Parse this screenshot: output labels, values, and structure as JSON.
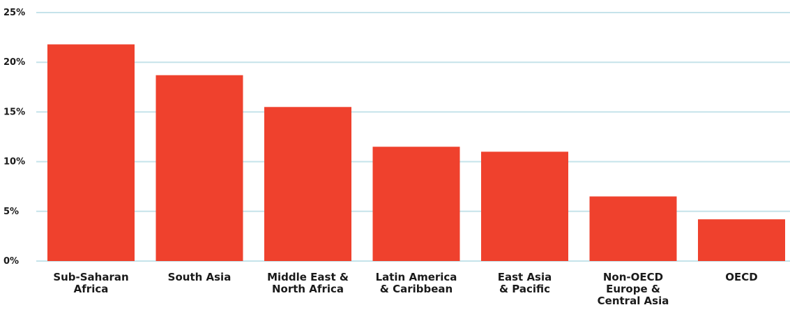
{
  "chart_data": {
    "type": "bar",
    "title": "",
    "xlabel": "",
    "ylabel": "",
    "categories": [
      [
        "Sub-Saharan",
        "Africa"
      ],
      [
        "South Asia"
      ],
      [
        "Middle East &",
        "North Africa"
      ],
      [
        "Latin America",
        "& Caribbean"
      ],
      [
        "East Asia",
        "& Pacific"
      ],
      [
        "Non-OECD",
        "Europe &",
        "Central Asia"
      ],
      [
        "OECD"
      ]
    ],
    "values": [
      21.8,
      18.7,
      15.5,
      11.5,
      11.0,
      6.5,
      4.2
    ],
    "ylim": [
      0,
      25
    ],
    "yticks": [
      0,
      5,
      10,
      15,
      20,
      25
    ],
    "ytick_labels": [
      "0%",
      "5%",
      "10%",
      "15%",
      "20%",
      "25%"
    ],
    "grid": true,
    "legend": "none",
    "colors": {
      "bar": "#ef412d",
      "grid": "#c5e3ea",
      "text": "#1a1a1a"
    }
  }
}
